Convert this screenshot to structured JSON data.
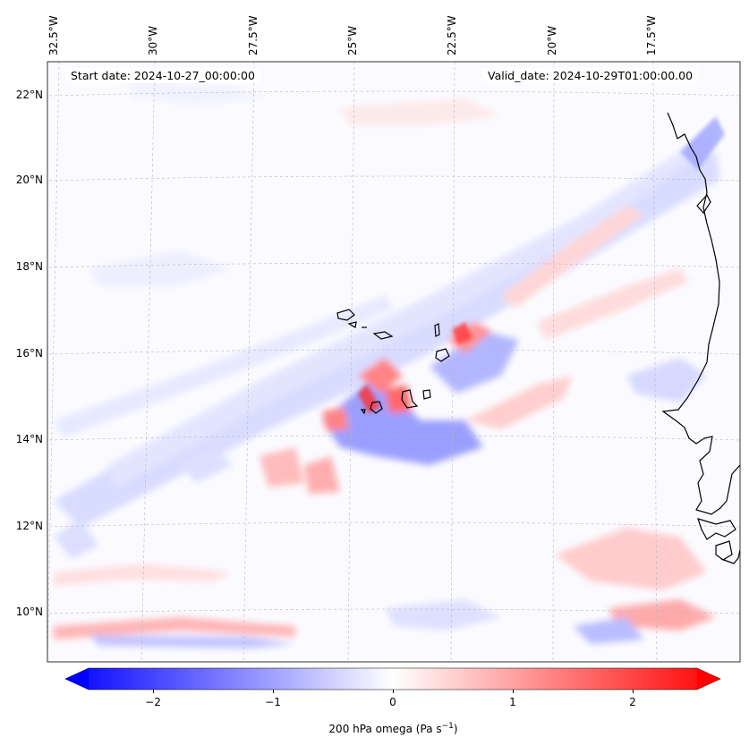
{
  "map": {
    "start_date": "Start date: 2024-10-27_00:00:00",
    "valid_date": "Valid_date: 2024-10-29T01:00:00.00",
    "longitude_labels": [
      "32.5°W",
      "30°W",
      "27.5°W",
      "25°W",
      "22.5°W",
      "20°W",
      "17.5°W"
    ],
    "latitude_labels": [
      "22°N",
      "20°N",
      "18°N",
      "16°N",
      "14°N",
      "12°N",
      "10°N"
    ],
    "colorbar": {
      "label_prefix": "200 hPa omega (Pa s",
      "label_exp": "−1",
      "label_suffix": ")",
      "ticks": [
        "−2",
        "−1",
        "0",
        "1",
        "2"
      ],
      "range": [
        -2.6,
        2.6
      ],
      "cmap": "bwr",
      "extend": "both"
    },
    "colors": {
      "negative": "#0000ff",
      "positive": "#ff0000",
      "neutral": "#ffffff",
      "coastline": "#000000"
    }
  }
}
